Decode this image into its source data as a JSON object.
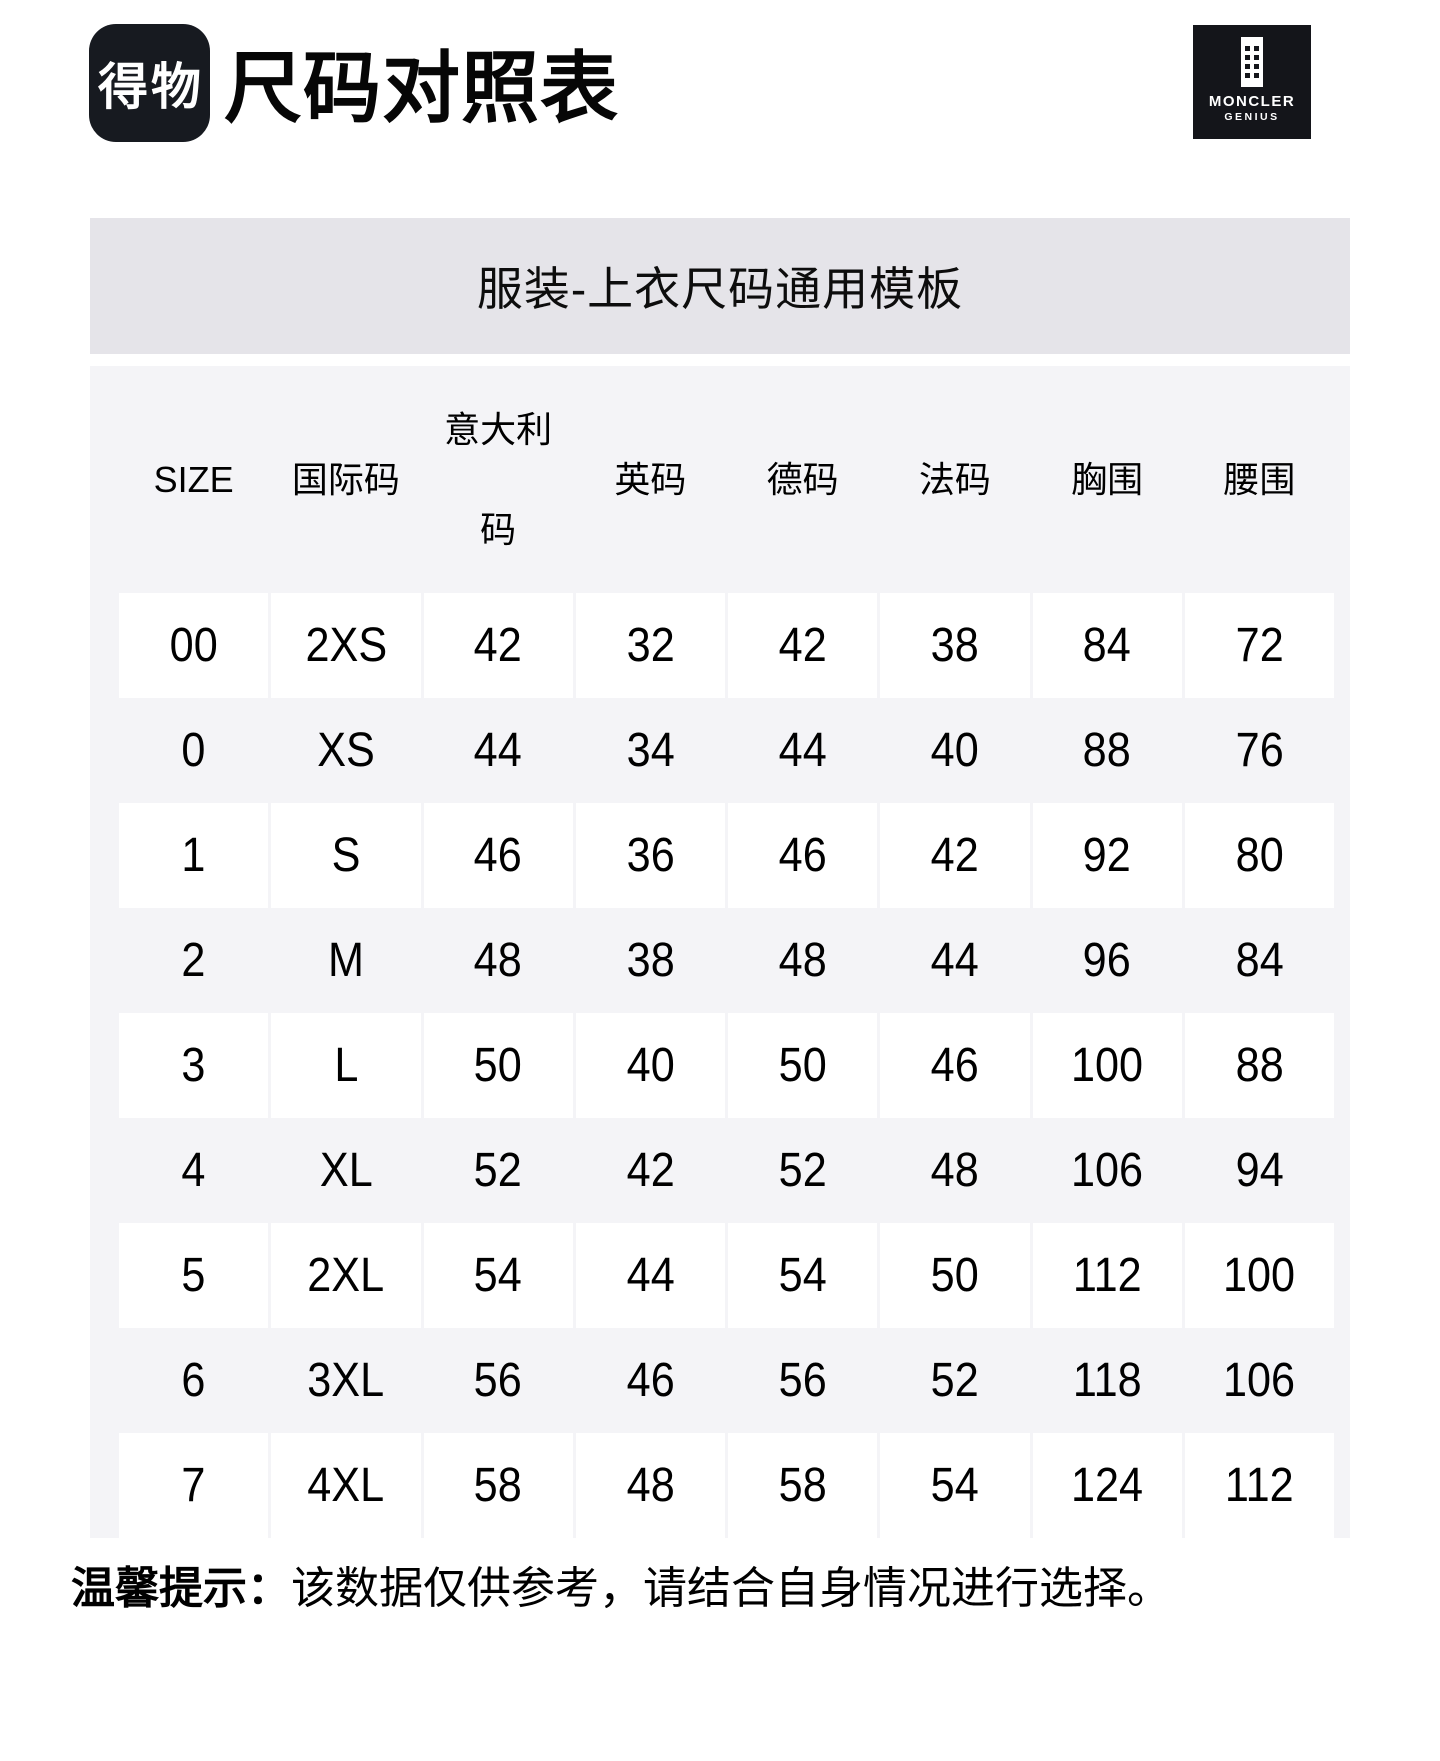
{
  "header": {
    "logo_text": "得物",
    "title": "尺码对照表",
    "brand": {
      "line1": "MONCLER",
      "line2": "GENIUS",
      "mark": "moncler-tower-icon"
    }
  },
  "banner": {
    "text": "服装-上衣尺码通用模板"
  },
  "table": {
    "columns": [
      "SIZE",
      "国际码",
      "意大利码",
      "英码",
      "德码",
      "法码",
      "胸围",
      "腰围"
    ],
    "rows": [
      [
        "00",
        "2XS",
        "42",
        "32",
        "42",
        "38",
        "84",
        "72"
      ],
      [
        "0",
        "XS",
        "44",
        "34",
        "44",
        "40",
        "88",
        "76"
      ],
      [
        "1",
        "S",
        "46",
        "36",
        "46",
        "42",
        "92",
        "80"
      ],
      [
        "2",
        "M",
        "48",
        "38",
        "48",
        "44",
        "96",
        "84"
      ],
      [
        "3",
        "L",
        "50",
        "40",
        "50",
        "46",
        "100",
        "88"
      ],
      [
        "4",
        "XL",
        "52",
        "42",
        "52",
        "48",
        "106",
        "94"
      ],
      [
        "5",
        "2XL",
        "54",
        "44",
        "54",
        "50",
        "112",
        "100"
      ],
      [
        "6",
        "3XL",
        "56",
        "46",
        "56",
        "52",
        "118",
        "106"
      ],
      [
        "7",
        "4XL",
        "58",
        "48",
        "58",
        "54",
        "124",
        "112"
      ]
    ]
  },
  "footer": {
    "note_label": "温馨提示：",
    "note_text": "该数据仅供参考，请结合自身情况进行选择。"
  },
  "colors": {
    "logo_bg": "#171a20",
    "brand_logo_bg": "#14151a",
    "banner_bg": "#e5e4e9",
    "table_bg": "#f4f4f7",
    "row_highlight_bg": "#ffffff",
    "text": "#000000"
  }
}
